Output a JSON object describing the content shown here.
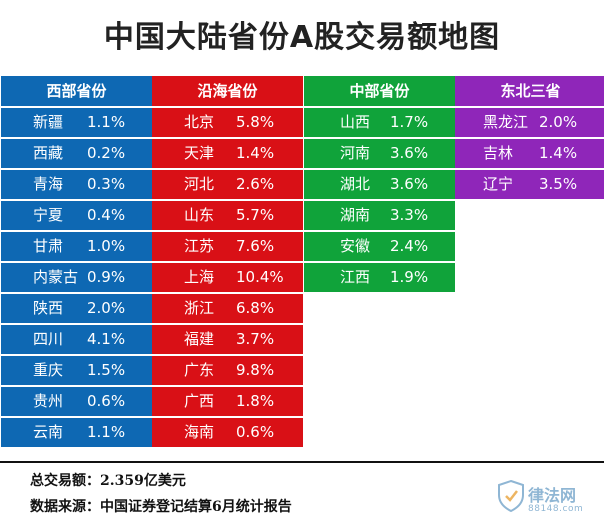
{
  "title": "中国大陆省份A股交易额地图",
  "colors": {
    "west": "#0e68b3",
    "coast": "#d91016",
    "central": "#10a33a",
    "northeast": "#8f26b9"
  },
  "columns": [
    {
      "key": "west",
      "header": "西部省份",
      "rows": [
        {
          "name": "新疆",
          "pct": "1.1%"
        },
        {
          "name": "西藏",
          "pct": "0.2%"
        },
        {
          "name": "青海",
          "pct": "0.3%"
        },
        {
          "name": "宁夏",
          "pct": "0.4%"
        },
        {
          "name": "甘肃",
          "pct": "1.0%"
        },
        {
          "name": "内蒙古",
          "pct": "0.9%"
        },
        {
          "name": "陕西",
          "pct": "2.0%"
        },
        {
          "name": "四川",
          "pct": "4.1%"
        },
        {
          "name": "重庆",
          "pct": "1.5%"
        },
        {
          "name": "贵州",
          "pct": "0.6%"
        },
        {
          "name": "云南",
          "pct": "1.1%"
        }
      ]
    },
    {
      "key": "coast",
      "header": "沿海省份",
      "rows": [
        {
          "name": "北京",
          "pct": "5.8%"
        },
        {
          "name": "天津",
          "pct": "1.4%"
        },
        {
          "name": "河北",
          "pct": "2.6%"
        },
        {
          "name": "山东",
          "pct": "5.7%"
        },
        {
          "name": "江苏",
          "pct": "7.6%"
        },
        {
          "name": "上海",
          "pct": "10.4%"
        },
        {
          "name": "浙江",
          "pct": "6.8%"
        },
        {
          "name": "福建",
          "pct": "3.7%"
        },
        {
          "name": "广东",
          "pct": "9.8%"
        },
        {
          "name": "广西",
          "pct": "1.8%"
        },
        {
          "name": "海南",
          "pct": "0.6%"
        }
      ]
    },
    {
      "key": "central",
      "header": "中部省份",
      "rows": [
        {
          "name": "山西",
          "pct": "1.7%"
        },
        {
          "name": "河南",
          "pct": "3.6%"
        },
        {
          "name": "湖北",
          "pct": "3.6%"
        },
        {
          "name": "湖南",
          "pct": "3.3%"
        },
        {
          "name": "安徽",
          "pct": "2.4%"
        },
        {
          "name": "江西",
          "pct": "1.9%"
        }
      ]
    },
    {
      "key": "northeast",
      "header": "东北三省",
      "rows": [
        {
          "name": "黑龙江",
          "pct": "2.0%"
        },
        {
          "name": "吉林",
          "pct": "1.4%"
        },
        {
          "name": "辽宁",
          "pct": "3.5%"
        }
      ]
    }
  ],
  "footer": {
    "total": "总交易额：2.359亿美元",
    "source": "数据来源：中国证券登记结算6月统计报告"
  },
  "logo": {
    "name": "律法网",
    "url": "88148.com",
    "icon": "shield-icon"
  }
}
